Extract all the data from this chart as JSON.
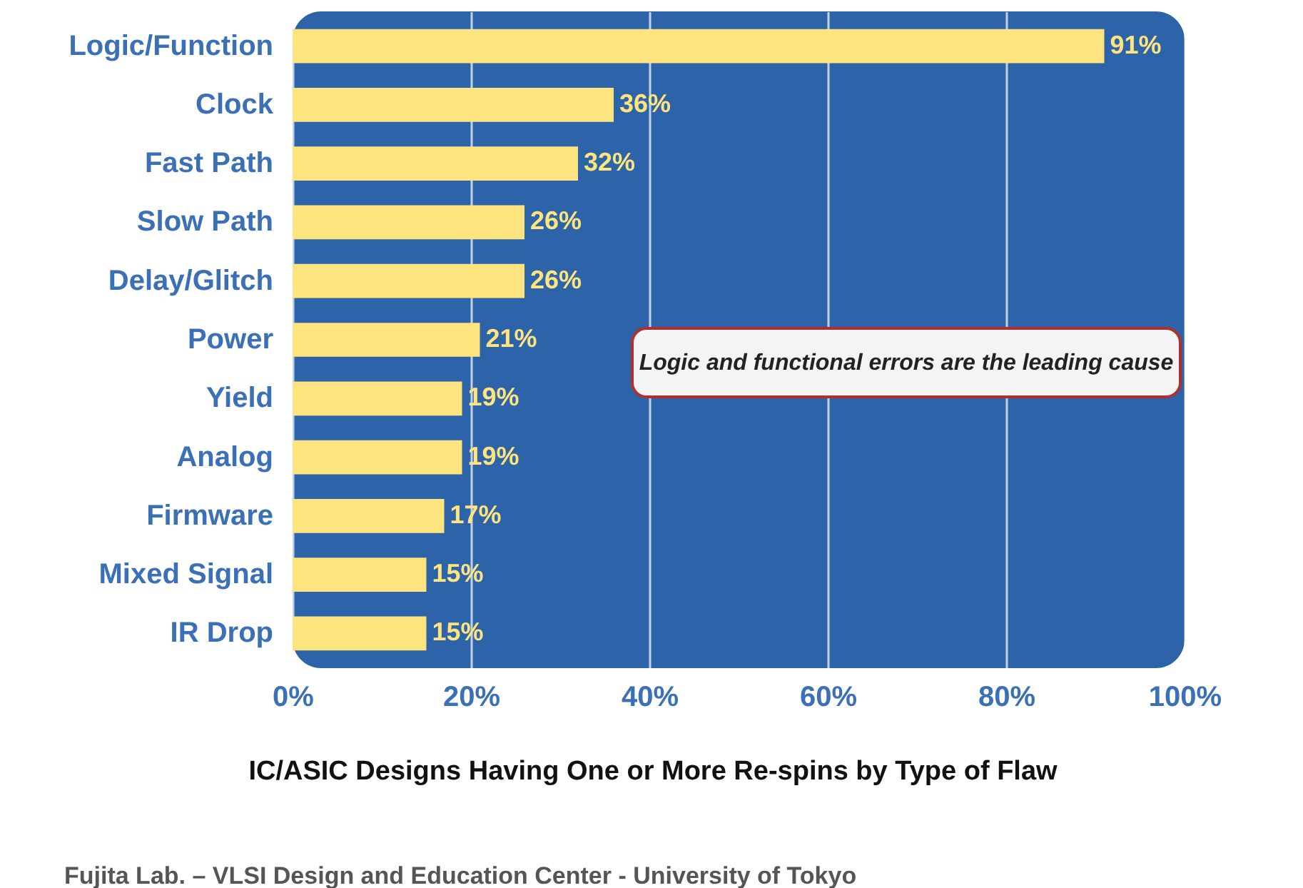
{
  "chart_data": {
    "type": "bar",
    "orientation": "horizontal",
    "title": "IC/ASIC Designs Having One or More Re-spins by Type of Flaw",
    "categories": [
      "Logic/Function",
      "Clock",
      "Fast Path",
      "Slow Path",
      "Delay/Glitch",
      "Power",
      "Yield",
      "Analog",
      "Firmware",
      "Mixed Signal",
      "IR Drop"
    ],
    "values": [
      91,
      36,
      32,
      26,
      26,
      21,
      19,
      19,
      17,
      15,
      15
    ],
    "value_labels": [
      "91%",
      "36%",
      "32%",
      "26%",
      "26%",
      "21%",
      "19%",
      "19%",
      "17%",
      "15%",
      "15%"
    ],
    "color": "#fde47f",
    "xlim": [
      0,
      100
    ],
    "xticks": [
      {
        "value": 0,
        "label": "0%"
      },
      {
        "value": 20,
        "label": "20%"
      },
      {
        "value": 40,
        "label": "40%"
      },
      {
        "value": 60,
        "label": "60%"
      },
      {
        "value": 80,
        "label": "80%"
      },
      {
        "value": 100,
        "label": "100%"
      }
    ],
    "grid": "x",
    "annotations": [
      "Logic and functional errors are the leading cause",
      "Fujita Lab. – VLSI Design and Education Center - University of Tokyo"
    ]
  }
}
